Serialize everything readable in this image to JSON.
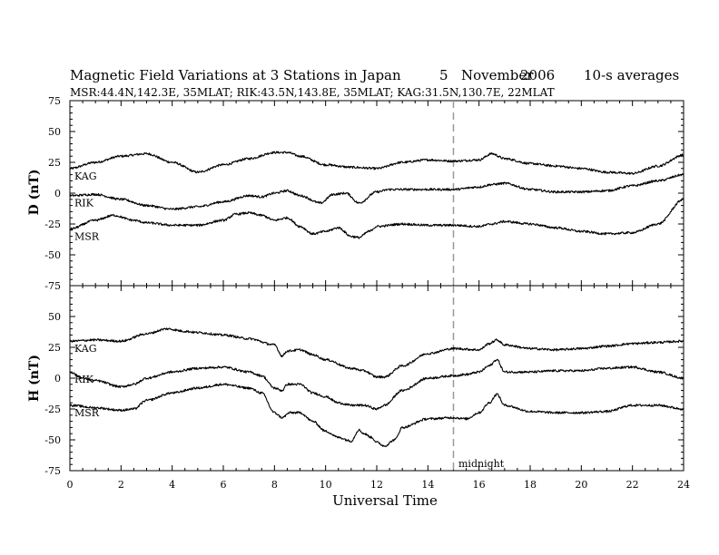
{
  "header": {
    "title": "Magnetic Field Variations at 3 Stations in Japan",
    "day": "5",
    "month": "November",
    "year": "2006",
    "averaging": "10-s averages",
    "stations_line": "MSR:44.4N,142.3E, 35MLAT;   RIK:43.5N,143.8E, 35MLAT;   KAG:31.5N,130.7E, 22MLAT"
  },
  "annotation": {
    "midnight_label": "midnight",
    "midnight_ut": 15
  },
  "chart_data": [
    {
      "type": "line",
      "panel": "D",
      "ylabel": "D (nT)",
      "xlabel": "",
      "xlim": [
        0,
        24
      ],
      "ylim": [
        -75,
        75
      ],
      "yticks": [
        75,
        50,
        25,
        0,
        -25,
        -50,
        -75
      ],
      "series": [
        {
          "name": "KAG",
          "x": [
            0,
            1,
            2,
            3,
            4,
            5,
            6,
            7,
            8,
            8.5,
            9,
            10,
            11,
            12,
            13,
            14,
            15,
            16,
            16.5,
            17,
            18,
            19,
            20,
            21,
            22,
            23,
            24
          ],
          "values": [
            20,
            25,
            30,
            32,
            25,
            17,
            23,
            28,
            33,
            33,
            30,
            23,
            21,
            20,
            25,
            27,
            26,
            27,
            32,
            28,
            24,
            22,
            20,
            17,
            16,
            22,
            31
          ]
        },
        {
          "name": "RIK",
          "x": [
            0,
            1,
            2,
            3,
            4,
            5,
            6,
            7,
            7.5,
            8,
            8.5,
            9,
            9.8,
            10.3,
            10.8,
            11.3,
            12,
            12.5,
            13,
            14,
            15,
            16,
            16.5,
            17,
            18,
            19,
            20,
            21,
            22,
            23,
            24
          ],
          "values": [
            -2,
            -1,
            -5,
            -10,
            -13,
            -11,
            -7,
            -2,
            -3,
            0,
            2,
            -2,
            -8,
            -1,
            0,
            -8,
            1,
            3,
            3,
            3,
            3,
            5,
            7,
            8,
            3,
            1,
            1,
            2,
            6,
            10,
            15
          ]
        },
        {
          "name": "MSR",
          "x": [
            0,
            1,
            1.7,
            2.5,
            3,
            4,
            5,
            6,
            6.5,
            7,
            7.5,
            8,
            8.5,
            9,
            9.5,
            10,
            10.5,
            11,
            11.3,
            11.7,
            12,
            13,
            14,
            15,
            16,
            16.5,
            17,
            18,
            19,
            20,
            21,
            22,
            23,
            24
          ],
          "values": [
            -29,
            -22,
            -18,
            -22,
            -24,
            -26,
            -26,
            -22,
            -17,
            -16,
            -18,
            -22,
            -20,
            -27,
            -33,
            -31,
            -28,
            -35,
            -36,
            -31,
            -27,
            -25,
            -26,
            -26,
            -27,
            -25,
            -23,
            -25,
            -28,
            -31,
            -33,
            -32,
            -25,
            -5
          ]
        }
      ]
    },
    {
      "type": "line",
      "panel": "H",
      "ylabel": "H (nT)",
      "xlabel": "Universal Time",
      "xlim": [
        0,
        24
      ],
      "ylim": [
        -75,
        75
      ],
      "xticks": [
        0,
        2,
        4,
        6,
        8,
        10,
        12,
        14,
        16,
        18,
        20,
        22,
        24
      ],
      "yticks": [
        75,
        50,
        25,
        0,
        -25,
        -50,
        -75
      ],
      "series": [
        {
          "name": "KAG",
          "x": [
            0,
            1,
            2,
            3,
            3.8,
            4.5,
            5,
            6,
            7,
            8,
            8.3,
            8.5,
            9,
            9.5,
            10,
            11,
            11.5,
            12,
            12.3,
            13,
            14,
            15,
            16,
            16.4,
            16.7,
            17,
            18,
            19,
            20,
            21,
            22,
            23,
            24
          ],
          "values": [
            30,
            31,
            30,
            36,
            40,
            38,
            37,
            35,
            32,
            27,
            18,
            22,
            23,
            19,
            15,
            8,
            6,
            1,
            1,
            10,
            20,
            24,
            23,
            28,
            31,
            27,
            24,
            23,
            24,
            26,
            28,
            29,
            30
          ]
        },
        {
          "name": "RIK",
          "x": [
            0,
            0.5,
            1,
            2,
            2.5,
            3,
            4,
            5,
            6,
            7,
            7.5,
            8,
            8.3,
            8.5,
            9,
            9.5,
            10,
            10.5,
            11,
            11.5,
            12,
            12.3,
            13,
            14,
            15,
            15.5,
            16,
            16.4,
            16.7,
            17,
            18,
            19,
            20,
            21,
            22,
            23,
            24
          ],
          "values": [
            5,
            0,
            -2,
            -7,
            -5,
            0,
            5,
            8,
            9,
            5,
            2,
            -8,
            -10,
            -5,
            -5,
            -12,
            -15,
            -20,
            -22,
            -22,
            -25,
            -22,
            -10,
            0,
            2,
            3,
            5,
            10,
            15,
            5,
            5,
            6,
            6,
            8,
            9,
            5,
            0
          ]
        },
        {
          "name": "MSR",
          "x": [
            0,
            1,
            2,
            2.5,
            3,
            4,
            5,
            6,
            7,
            7.5,
            8,
            8.3,
            8.6,
            9,
            9.5,
            10,
            10.5,
            11,
            11.3,
            11.5,
            11.8,
            12,
            12.3,
            12.7,
            13,
            14,
            15,
            15.5,
            16,
            16.4,
            16.7,
            17,
            18,
            19,
            20,
            21,
            22,
            23,
            24
          ],
          "values": [
            -22,
            -24,
            -26,
            -25,
            -18,
            -12,
            -8,
            -5,
            -8,
            -12,
            -28,
            -32,
            -28,
            -28,
            -35,
            -43,
            -48,
            -51,
            -42,
            -45,
            -48,
            -52,
            -55,
            -50,
            -40,
            -33,
            -32,
            -33,
            -28,
            -20,
            -13,
            -22,
            -27,
            -28,
            -28,
            -27,
            -22,
            -22,
            -25
          ]
        }
      ]
    }
  ]
}
